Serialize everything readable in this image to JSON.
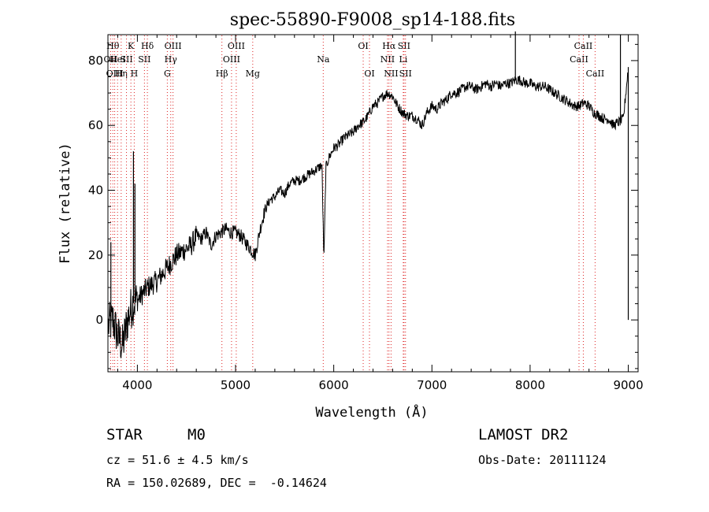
{
  "chart_data": {
    "type": "line",
    "title": "spec-55890-F9008_sp14-188.fits",
    "xlabel": "Wavelength (Å)",
    "ylabel": "Flux (relative)",
    "xlim": [
      3700,
      9100
    ],
    "ylim": [
      -16,
      88
    ],
    "x_ticks": [
      4000,
      5000,
      6000,
      7000,
      8000,
      9000
    ],
    "y_ticks": [
      0,
      20,
      40,
      60,
      80
    ],
    "grid": false,
    "series": [
      {
        "x": [
          3700,
          3750,
          3800,
          3850,
          3900,
          3950,
          4000,
          4050,
          4100,
          4150,
          4200,
          4250,
          4300,
          4350,
          4400,
          4450,
          4500,
          4550,
          4600,
          4650,
          4700,
          4750,
          4800,
          4850,
          4900,
          4950,
          5000,
          5050,
          5100,
          5150,
          5200,
          5250,
          5300,
          5350,
          5400,
          5450,
          5500,
          5550,
          5600,
          5650,
          5700,
          5750,
          5800,
          5850,
          5880,
          5900,
          5920,
          5950,
          6000,
          6050,
          6100,
          6150,
          6200,
          6250,
          6300,
          6350,
          6400,
          6450,
          6500,
          6550,
          6600,
          6650,
          6700,
          6750,
          6800,
          6850,
          6900,
          6950,
          7000,
          7050,
          7100,
          7150,
          7200,
          7250,
          7300,
          7350,
          7400,
          7450,
          7500,
          7550,
          7600,
          7650,
          7700,
          7750,
          7800,
          7850,
          7900,
          7950,
          8000,
          8050,
          8100,
          8150,
          8200,
          8250,
          8300,
          8350,
          8400,
          8450,
          8500,
          8550,
          8600,
          8650,
          8700,
          8750,
          8800,
          8850,
          8900,
          8950,
          9000
        ],
        "y": [
          -2,
          0,
          -5,
          -8,
          0,
          5,
          6,
          8,
          10,
          11,
          12,
          14,
          16,
          18,
          20,
          21,
          22,
          23,
          26,
          25,
          27,
          23,
          26,
          27,
          28,
          27,
          27,
          26,
          24,
          22,
          20,
          28,
          34,
          37,
          38,
          40,
          39,
          42,
          43,
          43,
          44,
          45,
          46,
          47,
          48,
          18,
          47,
          50,
          53,
          54,
          56,
          57,
          58,
          60,
          61,
          63,
          66,
          67,
          69,
          70,
          69,
          66,
          64,
          63,
          63,
          62,
          60,
          64,
          66,
          65,
          67,
          68,
          70,
          70,
          71,
          72,
          72,
          71,
          72,
          73,
          72,
          73,
          72,
          73,
          73,
          74,
          74,
          73,
          73,
          72,
          72,
          72,
          71,
          70,
          69,
          68,
          67,
          66,
          66,
          67,
          66,
          64,
          63,
          62,
          62,
          60,
          61,
          62,
          78
        ]
      }
    ],
    "spikes": [
      {
        "x": 3730,
        "y": 24
      },
      {
        "x": 3960,
        "y": 52
      },
      {
        "x": 3975,
        "y": 42
      },
      {
        "x": 7850,
        "y": 89
      },
      {
        "x": 8920,
        "y": 88
      },
      {
        "x": 9000,
        "y": 0
      }
    ],
    "line_markers": [
      {
        "x": 3727,
        "row": 1,
        "label": "OII"
      },
      {
        "x": 3750,
        "row": 0,
        "label": "Hθ"
      },
      {
        "x": 3769,
        "row": 2,
        "label": "OIII"
      },
      {
        "x": 3798,
        "row": 1,
        "label": "HeI"
      },
      {
        "x": 3835,
        "row": 2,
        "label": "Hη"
      },
      {
        "x": 3889,
        "row": 1,
        "label": "SII"
      },
      {
        "x": 3934,
        "row": 0,
        "label": "K"
      },
      {
        "x": 3968,
        "row": 2,
        "label": "H"
      },
      {
        "x": 4072,
        "row": 1,
        "label": "SII"
      },
      {
        "x": 4102,
        "row": 0,
        "label": "Hδ"
      },
      {
        "x": 4305,
        "row": 2,
        "label": "G"
      },
      {
        "x": 4340,
        "row": 1,
        "label": "Hγ"
      },
      {
        "x": 4363,
        "row": 0,
        "label": "OIII"
      },
      {
        "x": 4861,
        "row": 2,
        "label": "Hβ"
      },
      {
        "x": 4959,
        "row": 1,
        "label": "OIII"
      },
      {
        "x": 5007,
        "row": 0,
        "label": "OIII"
      },
      {
        "x": 5175,
        "row": 2,
        "label": "Mg"
      },
      {
        "x": 5893,
        "row": 1,
        "label": "Na"
      },
      {
        "x": 6300,
        "row": 0,
        "label": "OI"
      },
      {
        "x": 6364,
        "row": 2,
        "label": "OI"
      },
      {
        "x": 6548,
        "row": 1,
        "label": "NII"
      },
      {
        "x": 6563,
        "row": 0,
        "label": "Hα"
      },
      {
        "x": 6584,
        "row": 2,
        "label": "NII"
      },
      {
        "x": 6708,
        "row": 1,
        "label": "Li"
      },
      {
        "x": 6716,
        "row": 0,
        "label": "SII"
      },
      {
        "x": 6731,
        "row": 2,
        "label": "SII"
      },
      {
        "x": 8498,
        "row": 1,
        "label": "CaII"
      },
      {
        "x": 8542,
        "row": 0,
        "label": "CaII"
      },
      {
        "x": 8662,
        "row": 2,
        "label": "CaII"
      }
    ]
  },
  "info": {
    "class": "STAR",
    "subclass": "M0",
    "survey": "LAMOST DR2",
    "cz": "cz = 51.6 ± 4.5 km/s",
    "obs_date": "Obs-Date: 20111124",
    "coords": "RA = 150.02689, DEC =  -0.14624"
  }
}
